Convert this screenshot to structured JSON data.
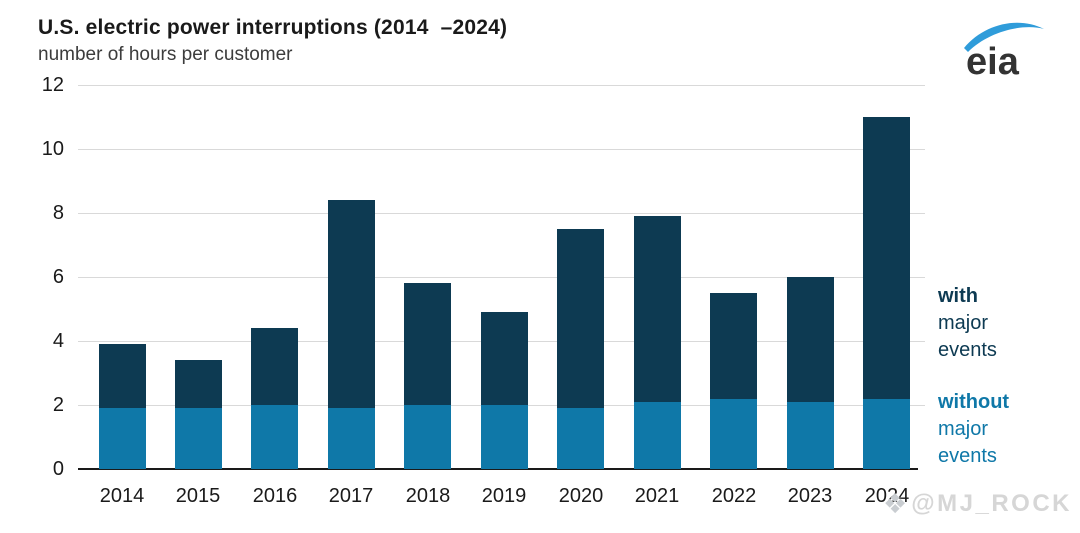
{
  "header": {
    "title": "U.S. electric power interruptions (2014  –2024)",
    "subtitle": "number of hours per customer"
  },
  "logo": {
    "name": "eia-logo",
    "text": "eia",
    "swoosh_color": "#2f9cda",
    "text_color": "#333333"
  },
  "chart_data": {
    "type": "bar",
    "stacked": true,
    "title": "U.S. electric power interruptions (2014–2024)",
    "ylabel": "number of hours per customer",
    "ylim": [
      0,
      12
    ],
    "yticks": [
      0,
      2,
      4,
      6,
      8,
      10,
      12
    ],
    "grid": "horizontal-light",
    "legend_position": "right",
    "categories": [
      "2014",
      "2015",
      "2016",
      "2017",
      "2018",
      "2019",
      "2020",
      "2021",
      "2022",
      "2023",
      "2024"
    ],
    "series": [
      {
        "name": "without major events",
        "color": "#0f78a8",
        "values": [
          1.9,
          1.9,
          2.0,
          1.9,
          2.0,
          2.0,
          1.9,
          2.1,
          2.2,
          2.1,
          2.2
        ]
      },
      {
        "name": "with major events",
        "color": "#0d3a52",
        "values": [
          2.0,
          1.5,
          2.4,
          6.5,
          3.8,
          2.9,
          5.6,
          5.8,
          3.3,
          3.9,
          8.8
        ]
      }
    ],
    "totals": [
      3.9,
      3.4,
      4.4,
      8.4,
      5.8,
      4.9,
      7.5,
      7.9,
      5.5,
      6.0,
      11.0
    ]
  },
  "legend": {
    "with": {
      "line1": "with",
      "line2": "major",
      "line3": "events",
      "color": "#0d3a52"
    },
    "without": {
      "line1": "without",
      "line2": "major",
      "line3": "events",
      "color": "#0f78a8"
    }
  },
  "watermark": {
    "icon": "❖",
    "text": "@MJ_ROCK"
  }
}
